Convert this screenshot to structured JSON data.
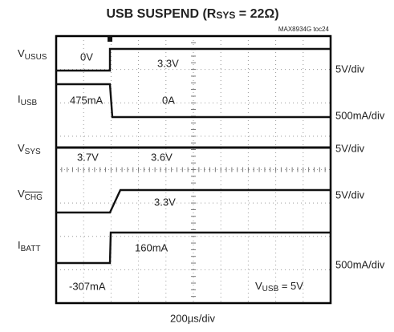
{
  "title": {
    "prefix": "USB SUSPEND (R",
    "sub": "SYS",
    "suffix": " = 22Ω)"
  },
  "subtitle": "MAX8934G toc24",
  "channels": [
    {
      "main": "V",
      "sub": "USUS",
      "scale": "5V/div"
    },
    {
      "main": "I",
      "sub": "USB",
      "scale": "500mA/div"
    },
    {
      "main": "V",
      "sub": "SYS",
      "scale": "5V/div"
    },
    {
      "main": "V",
      "sub": "CHG",
      "scale": "5V/div"
    },
    {
      "main": "I",
      "sub": "BATT",
      "scale": "500mA/div"
    }
  ],
  "annotations": [
    "0V",
    "3.3V",
    "475mA",
    "0A",
    "3.7V",
    "3.6V",
    "3.3V",
    "160mA",
    "-307mA"
  ],
  "condition": {
    "main": "V",
    "sub": "USB",
    "suffix": " = 5V"
  },
  "timebase": "200µs/div"
}
